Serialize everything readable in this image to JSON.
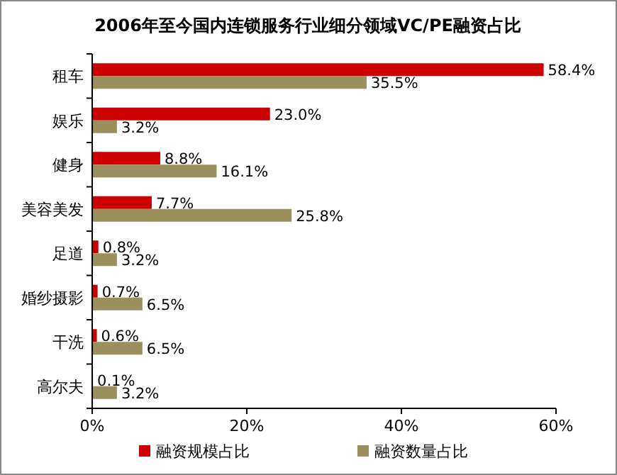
{
  "chart_data": {
    "type": "bar",
    "orientation": "horizontal",
    "title": "2006年至今国内连锁服务行业细分领域VC/PE融资占比",
    "categories": [
      "租车",
      "娱乐",
      "健身",
      "美容美发",
      "足道",
      "婚纱摄影",
      "干洗",
      "高尔夫"
    ],
    "series": [
      {
        "name": "融资规模占比",
        "color": "#cc0000",
        "values": [
          58.4,
          23.0,
          8.8,
          7.7,
          0.8,
          0.7,
          0.6,
          0.1
        ],
        "value_labels": [
          "58.4%",
          "23.0%",
          "8.8%",
          "7.7%",
          "0.8%",
          "0.7%",
          "0.6%",
          "0.1%"
        ]
      },
      {
        "name": "融资数量占比",
        "color": "#9c8f5e",
        "values": [
          35.5,
          3.2,
          16.1,
          25.8,
          3.2,
          6.5,
          6.5,
          3.2
        ],
        "value_labels": [
          "35.5%",
          "3.2%",
          "16.1%",
          "25.8%",
          "3.2%",
          "6.5%",
          "6.5%",
          "3.2%"
        ]
      }
    ],
    "xlim": [
      0,
      60
    ],
    "xticks": [
      {
        "value": 0,
        "label": "0%"
      },
      {
        "value": 20,
        "label": "20%"
      },
      {
        "value": 40,
        "label": "40%"
      },
      {
        "value": 60,
        "label": "60%"
      }
    ],
    "legend": "bottom"
  }
}
